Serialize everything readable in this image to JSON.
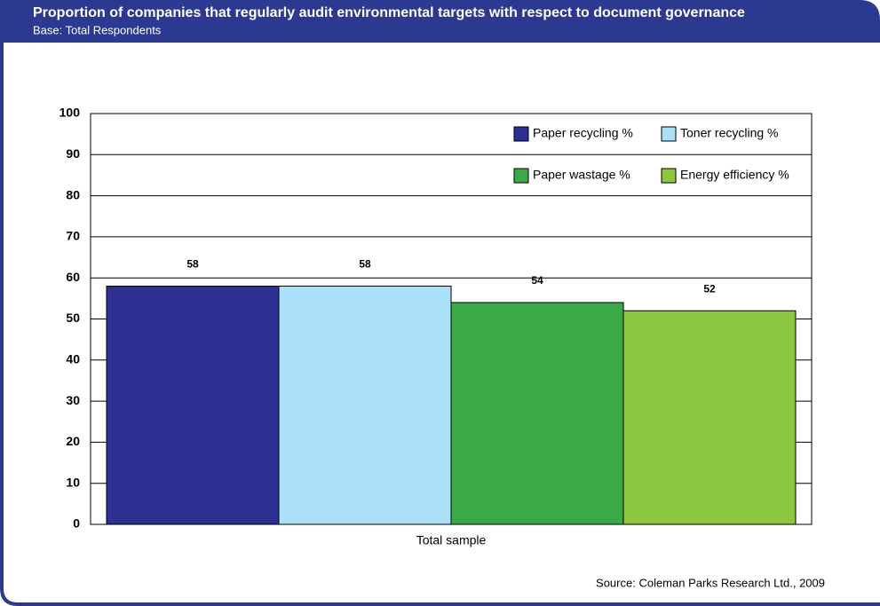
{
  "chart_data": {
    "type": "bar",
    "title": "Proportion of companies that regularly audit environmental targets with respect to document governance",
    "subtitle": "Base: Total Respondents",
    "source": "Source: Coleman Parks Research Ltd., 2009",
    "categories": [
      "Total sample"
    ],
    "series": [
      {
        "name": "Paper recycling %",
        "color": "#2e3192",
        "values": [
          58
        ]
      },
      {
        "name": "Toner recycling %",
        "color": "#abe0f9",
        "values": [
          58
        ]
      },
      {
        "name": "Paper wastage %",
        "color": "#3aaa48",
        "values": [
          54
        ]
      },
      {
        "name": "Energy efficiency %",
        "color": "#8dc63f",
        "values": [
          52
        ]
      }
    ],
    "ylim": [
      0,
      100
    ],
    "yticks": [
      0,
      10,
      20,
      30,
      40,
      50,
      60,
      70,
      80,
      90,
      100
    ],
    "grid": true,
    "legend": "top-right"
  }
}
